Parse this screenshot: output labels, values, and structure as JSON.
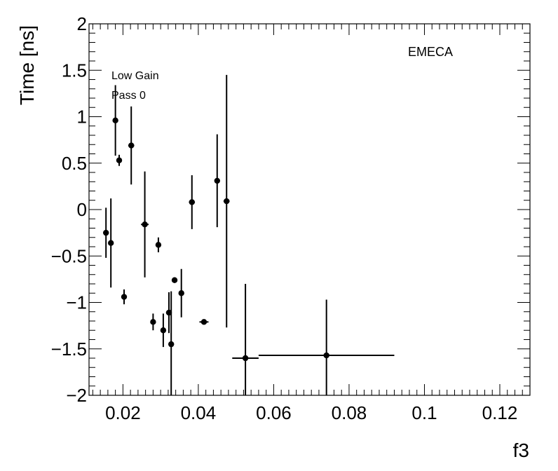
{
  "chart_data": {
    "type": "scatter",
    "title": "",
    "xlabel": "f3",
    "ylabel": "Time [ns]",
    "xlim": [
      0.011,
      0.128
    ],
    "ylim": [
      -2,
      2
    ],
    "x_ticks": [
      "0.02",
      "0.04",
      "0.06",
      "0.08",
      "0.1",
      "0.12"
    ],
    "y_ticks": [
      "2",
      "1.5",
      "1",
      "0.5",
      "0",
      "−0.5",
      "−1",
      "−1.5",
      "−2"
    ],
    "annotations": [
      "Low Gain",
      "Pass 0",
      "EMECA"
    ],
    "grid": false,
    "points": [
      {
        "x": 0.0155,
        "y": -0.25,
        "xerr": 0.0,
        "yerr": 0.27
      },
      {
        "x": 0.0168,
        "y": -0.36,
        "xerr": 0.0006,
        "yerr": 0.48
      },
      {
        "x": 0.018,
        "y": 0.96,
        "xerr": 0.0,
        "yerr": 0.38
      },
      {
        "x": 0.019,
        "y": 0.53,
        "xerr": 0.0005,
        "yerr": 0.06
      },
      {
        "x": 0.0203,
        "y": -0.94,
        "xerr": 0.0,
        "yerr": 0.08
      },
      {
        "x": 0.0222,
        "y": 0.69,
        "xerr": 0.0008,
        "yerr": 0.42
      },
      {
        "x": 0.0258,
        "y": -0.16,
        "xerr": 0.001,
        "yerr": 0.57
      },
      {
        "x": 0.028,
        "y": -1.21,
        "xerr": 0.0,
        "yerr": 0.09
      },
      {
        "x": 0.0294,
        "y": -0.38,
        "xerr": 0.0,
        "yerr": 0.08
      },
      {
        "x": 0.0307,
        "y": -1.3,
        "xerr": 0.0,
        "yerr": 0.18
      },
      {
        "x": 0.0322,
        "y": -1.11,
        "xerr": 0.0,
        "yerr": 0.22
      },
      {
        "x": 0.0328,
        "y": -1.45,
        "xerr": 0.0,
        "yerr": 0.57
      },
      {
        "x": 0.0337,
        "y": -0.76,
        "xerr": 0.0,
        "yerr": 0.03
      },
      {
        "x": 0.0355,
        "y": -0.9,
        "xerr": 0.0007,
        "yerr": 0.26
      },
      {
        "x": 0.0383,
        "y": 0.08,
        "xerr": 0.0008,
        "yerr": 0.29
      },
      {
        "x": 0.0415,
        "y": -1.21,
        "xerr": 0.0012,
        "yerr": 0.0
      },
      {
        "x": 0.045,
        "y": 0.31,
        "xerr": 0.0,
        "yerr": 0.5
      },
      {
        "x": 0.0475,
        "y": 0.09,
        "xerr": 0.0008,
        "yerr": 1.36
      },
      {
        "x": 0.0525,
        "y": -1.6,
        "xerr": 0.0035,
        "yerr": 0.8
      },
      {
        "x": 0.074,
        "y": -1.57,
        "xerr": 0.018,
        "yerr": 0.6
      }
    ]
  }
}
